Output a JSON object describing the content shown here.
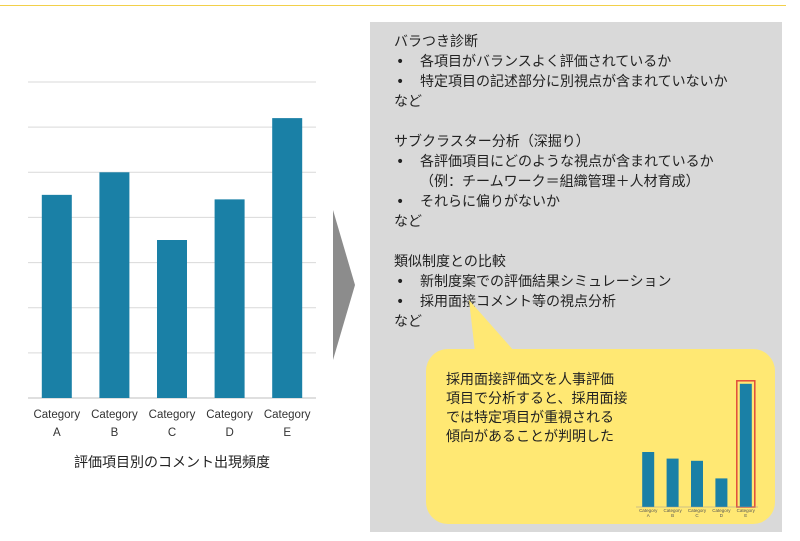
{
  "chart_data": [
    {
      "type": "bar",
      "categories": [
        "Category A",
        "Category B",
        "Category C",
        "Category D",
        "Category E"
      ],
      "values": [
        4.5,
        5.0,
        3.5,
        4.4,
        6.2
      ],
      "ylim": [
        0,
        7
      ],
      "grid": true,
      "color": "#1a80a6",
      "title": "評価項目別のコメント出現頻度"
    },
    {
      "type": "bar",
      "categories": [
        "Category A",
        "Category B",
        "Category C",
        "Category D",
        "Category E"
      ],
      "values": [
        2.5,
        2.2,
        2.1,
        1.3,
        5.6
      ],
      "ylim": [
        0,
        6
      ],
      "color": "#1a80a6",
      "highlight_color": "#e14b3a",
      "highlighted_category": "Category E"
    }
  ],
  "arrow_color": "#8c8c8c",
  "sections": [
    {
      "title": "バラつき診断",
      "bullets": [
        {
          "text": "各項目がバランスよく評価されているか",
          "cont": ""
        },
        {
          "text": "特定項目の記述部分に別視点が含まれていないか",
          "cont": ""
        }
      ],
      "tail": "など"
    },
    {
      "title": "サブクラスター分析（深掘り）",
      "bullets": [
        {
          "text": "各評価項目にどのような視点が含まれているか",
          "cont": "（例：チームワーク＝組織管理＋人材育成）"
        },
        {
          "text": "それらに偏りがないか",
          "cont": ""
        }
      ],
      "tail": "など"
    },
    {
      "title": "類似制度との比較",
      "bullets": [
        {
          "text": "新制度案での評価結果シミュレーション",
          "cont": ""
        },
        {
          "text": "採用面接コメント等の視点分析",
          "cont": ""
        }
      ],
      "tail": "など"
    }
  ],
  "callout": {
    "lines": [
      "採用面接評価文を人事評価",
      "項目で分析すると、採用面接",
      "では特定項目が重視される",
      "傾向があることが判明した"
    ]
  }
}
